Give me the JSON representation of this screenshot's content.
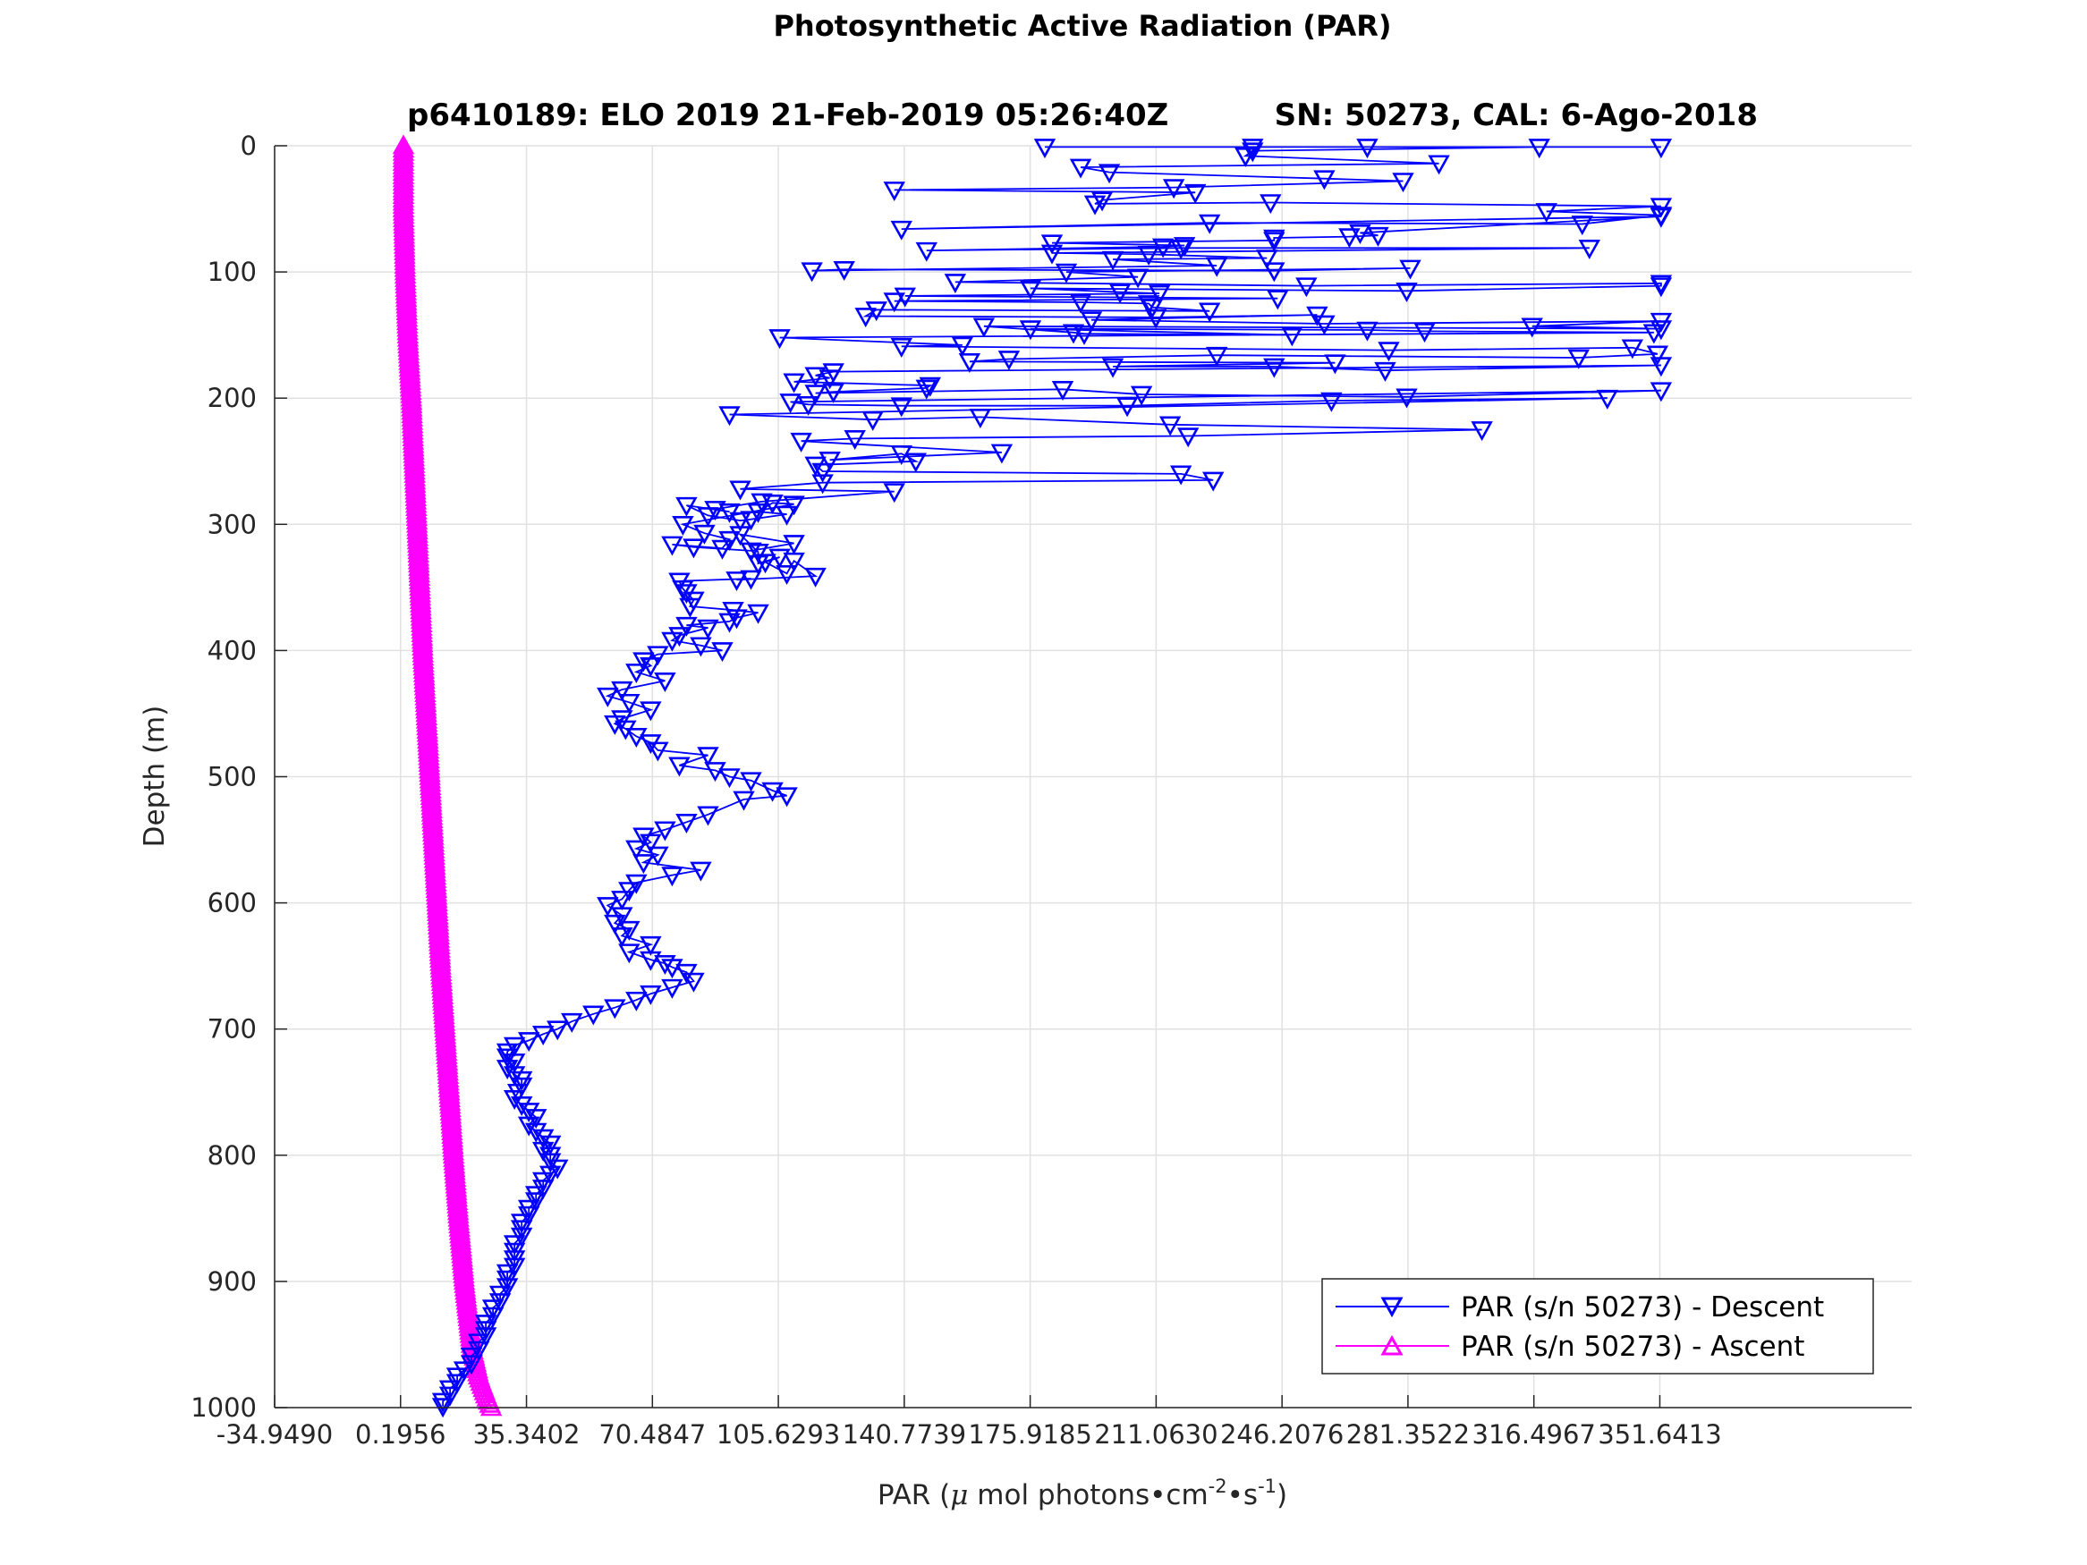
{
  "chart_data": {
    "type": "line",
    "title": "Photosynthetic Active Radiation (PAR)",
    "subtitle": "p6410189: ELO 2019 21-Feb-2019 05:26:40Z          SN: 50273, CAL: 6-Ago-2018",
    "xlabel": {
      "prefix": "PAR (",
      "mu": "μ",
      "mid": " mol photons",
      "bullet1": "•",
      "unit1": "cm",
      "exp1": "-2",
      "bullet2": "•",
      "unit2": "s",
      "exp2": "-1",
      "suffix": ")"
    },
    "ylabel": "Depth (m)",
    "xlim": [
      -34.949,
      421.93
    ],
    "ylim": [
      0,
      1000
    ],
    "y_reversed": true,
    "grid": true,
    "x_ticks": [
      -34.949,
      0.1956,
      35.3402,
      70.4847,
      105.6293,
      140.7739,
      175.9185,
      211.063,
      246.2076,
      281.3522,
      316.4967,
      351.6413
    ],
    "x_tick_labels": [
      "-34.9490",
      "0.1956",
      "35.3402",
      "70.4847",
      "105.6293",
      "140.7739",
      "175.9185",
      "211.0630",
      "246.2076",
      "281.3522",
      "316.4967",
      "351.6413"
    ],
    "y_ticks": [
      0,
      100,
      200,
      300,
      400,
      500,
      600,
      700,
      800,
      900,
      1000
    ],
    "y_tick_labels": [
      "0",
      "100",
      "200",
      "300",
      "400",
      "500",
      "600",
      "700",
      "800",
      "900",
      "1000"
    ],
    "legend": {
      "position": "bottom-right"
    },
    "series": [
      {
        "name": "PAR (s/n 50273) - Descent",
        "color": "#0000ff",
        "marker": "triangle-down",
        "points": [
          [
            180,
            1
          ],
          [
            238,
            1
          ],
          [
            270,
            1
          ],
          [
            352,
            1
          ],
          [
            318,
            1
          ],
          [
            238,
            4
          ],
          [
            236,
            8
          ],
          [
            290,
            14
          ],
          [
            190,
            17
          ],
          [
            198,
            21
          ],
          [
            258,
            26
          ],
          [
            280,
            28
          ],
          [
            216,
            33
          ],
          [
            138,
            35
          ],
          [
            222,
            37
          ],
          [
            196,
            43
          ],
          [
            194,
            46
          ],
          [
            243,
            45
          ],
          [
            352,
            48
          ],
          [
            320,
            52
          ],
          [
            352,
            55
          ],
          [
            330,
            62
          ],
          [
            226,
            61
          ],
          [
            140,
            66
          ],
          [
            352,
            56
          ],
          [
            268,
            69
          ],
          [
            273,
            71
          ],
          [
            265,
            72
          ],
          [
            244,
            73
          ],
          [
            244,
            75
          ],
          [
            182,
            77
          ],
          [
            219,
            79
          ],
          [
            213,
            80
          ],
          [
            147,
            83
          ],
          [
            218,
            81
          ],
          [
            332,
            81
          ],
          [
            182,
            85
          ],
          [
            209,
            86
          ],
          [
            242,
            89
          ],
          [
            199,
            90
          ],
          [
            228,
            95
          ],
          [
            115,
            99
          ],
          [
            124,
            98
          ],
          [
            244,
            99
          ],
          [
            282,
            97
          ],
          [
            186,
            100
          ],
          [
            206,
            104
          ],
          [
            155,
            108
          ],
          [
            253,
            111
          ],
          [
            352,
            109
          ],
          [
            352,
            111
          ],
          [
            281,
            115
          ],
          [
            176,
            113
          ],
          [
            201,
            116
          ],
          [
            212,
            117
          ],
          [
            141,
            119
          ],
          [
            245,
            121
          ],
          [
            138,
            123
          ],
          [
            190,
            124
          ],
          [
            209,
            125
          ],
          [
            210,
            128
          ],
          [
            226,
            131
          ],
          [
            133,
            130
          ],
          [
            130,
            135
          ],
          [
            211,
            136
          ],
          [
            256,
            134
          ],
          [
            193,
            138
          ],
          [
            258,
            141
          ],
          [
            352,
            139
          ],
          [
            316,
            143
          ],
          [
            352,
            145
          ],
          [
            163,
            143
          ],
          [
            188,
            148
          ],
          [
            191,
            149
          ],
          [
            249,
            150
          ],
          [
            176,
            145
          ],
          [
            270,
            146
          ],
          [
            286,
            147
          ],
          [
            350,
            148
          ],
          [
            106,
            152
          ],
          [
            157,
            158
          ],
          [
            140,
            159
          ],
          [
            276,
            162
          ],
          [
            344,
            160
          ],
          [
            351,
            165
          ],
          [
            329,
            168
          ],
          [
            228,
            166
          ],
          [
            170,
            169
          ],
          [
            159,
            171
          ],
          [
            261,
            172
          ],
          [
            199,
            175
          ],
          [
            244,
            175
          ],
          [
            275,
            178
          ],
          [
            352,
            174
          ],
          [
            121,
            179
          ],
          [
            116,
            182
          ],
          [
            120,
            184
          ],
          [
            110,
            187
          ],
          [
            148,
            190
          ],
          [
            147,
            192
          ],
          [
            121,
            195
          ],
          [
            116,
            196
          ],
          [
            185,
            193
          ],
          [
            207,
            197
          ],
          [
            281,
            199
          ],
          [
            352,
            194
          ],
          [
            109,
            203
          ],
          [
            114,
            205
          ],
          [
            140,
            206
          ],
          [
            203,
            206
          ],
          [
            260,
            202
          ],
          [
            337,
            200
          ],
          [
            92,
            213
          ],
          [
            132,
            217
          ],
          [
            162,
            215
          ],
          [
            215,
            221
          ],
          [
            302,
            225
          ],
          [
            220,
            230
          ],
          [
            127,
            232
          ],
          [
            112,
            234
          ],
          [
            168,
            243
          ],
          [
            120,
            249
          ],
          [
            140,
            244
          ],
          [
            144,
            250
          ],
          [
            116,
            253
          ],
          [
            118,
            258
          ],
          [
            218,
            260
          ],
          [
            227,
            265
          ],
          [
            118,
            267
          ],
          [
            95,
            272
          ],
          [
            138,
            274
          ],
          [
            101,
            282
          ],
          [
            88,
            288
          ],
          [
            92,
            290
          ],
          [
            80,
            285
          ],
          [
            86,
            293
          ],
          [
            95,
            297
          ],
          [
            98,
            296
          ],
          [
            108,
            292
          ],
          [
            100,
            290
          ],
          [
            104,
            283
          ],
          [
            110,
            284
          ],
          [
            79,
            300
          ],
          [
            85,
            307
          ],
          [
            92,
            312
          ],
          [
            90,
            319
          ],
          [
            76,
            316
          ],
          [
            82,
            318
          ],
          [
            98,
            321
          ],
          [
            110,
            315
          ],
          [
            95,
            308
          ],
          [
            100,
            322
          ],
          [
            100,
            331
          ],
          [
            106,
            326
          ],
          [
            102,
            330
          ],
          [
            108,
            339
          ],
          [
            110,
            329
          ],
          [
            116,
            341
          ],
          [
            94,
            344
          ],
          [
            98,
            343
          ],
          [
            78,
            345
          ],
          [
            79,
            351
          ],
          [
            80,
            354
          ],
          [
            82,
            360
          ],
          [
            81,
            365
          ],
          [
            93,
            368
          ],
          [
            100,
            370
          ],
          [
            94,
            374
          ],
          [
            92,
            377
          ],
          [
            80,
            380
          ],
          [
            86,
            382
          ],
          [
            78,
            388
          ],
          [
            76,
            392
          ],
          [
            84,
            396
          ],
          [
            90,
            400
          ],
          [
            72,
            403
          ],
          [
            68,
            408
          ],
          [
            70,
            412
          ],
          [
            66,
            417
          ],
          [
            74,
            424
          ],
          [
            62,
            431
          ],
          [
            58,
            436
          ],
          [
            64,
            441
          ],
          [
            70,
            447
          ],
          [
            62,
            454
          ],
          [
            60,
            458
          ],
          [
            63,
            462
          ],
          [
            66,
            468
          ],
          [
            70,
            473
          ],
          [
            72,
            479
          ],
          [
            86,
            483
          ],
          [
            78,
            491
          ],
          [
            88,
            495
          ],
          [
            92,
            500
          ],
          [
            98,
            503
          ],
          [
            104,
            511
          ],
          [
            108,
            515
          ],
          [
            96,
            518
          ],
          [
            86,
            530
          ],
          [
            80,
            536
          ],
          [
            74,
            542
          ],
          [
            68,
            547
          ],
          [
            70,
            552
          ],
          [
            66,
            557
          ],
          [
            72,
            562
          ],
          [
            68,
            568
          ],
          [
            84,
            574
          ],
          [
            76,
            578
          ],
          [
            66,
            584
          ],
          [
            64,
            590
          ],
          [
            62,
            597
          ],
          [
            58,
            602
          ],
          [
            62,
            610
          ],
          [
            60,
            616
          ],
          [
            64,
            621
          ],
          [
            62,
            626
          ],
          [
            70,
            633
          ],
          [
            64,
            639
          ],
          [
            70,
            645
          ],
          [
            74,
            648
          ],
          [
            76,
            651
          ],
          [
            80,
            655
          ],
          [
            82,
            662
          ],
          [
            76,
            667
          ],
          [
            70,
            672
          ],
          [
            66,
            677
          ],
          [
            60,
            683
          ],
          [
            54,
            688
          ],
          [
            48,
            694
          ],
          [
            44,
            700
          ],
          [
            40,
            704
          ],
          [
            36,
            709
          ],
          [
            32,
            713
          ],
          [
            30,
            718
          ],
          [
            30,
            722
          ],
          [
            32,
            726
          ],
          [
            30,
            731
          ],
          [
            32,
            736
          ],
          [
            34,
            740
          ],
          [
            34,
            745
          ],
          [
            33,
            750
          ],
          [
            32,
            755
          ],
          [
            34,
            760
          ],
          [
            36,
            765
          ],
          [
            38,
            770
          ],
          [
            36,
            776
          ],
          [
            38,
            781
          ],
          [
            40,
            786
          ],
          [
            42,
            791
          ],
          [
            40,
            796
          ],
          [
            42,
            800
          ],
          [
            42,
            805
          ],
          [
            44,
            810
          ],
          [
            42,
            815
          ],
          [
            40,
            820
          ],
          [
            40,
            826
          ],
          [
            38,
            831
          ],
          [
            38,
            836
          ],
          [
            36,
            842
          ],
          [
            36,
            847
          ],
          [
            34,
            853
          ],
          [
            34,
            858
          ],
          [
            34,
            864
          ],
          [
            32,
            870
          ],
          [
            32,
            876
          ],
          [
            32,
            882
          ],
          [
            32,
            888
          ],
          [
            30,
            893
          ],
          [
            30,
            898
          ],
          [
            30,
            904
          ],
          [
            28,
            910
          ],
          [
            28,
            916
          ],
          [
            26,
            921
          ],
          [
            26,
            927
          ],
          [
            24,
            933
          ],
          [
            24,
            938
          ],
          [
            24,
            943
          ],
          [
            22,
            948
          ],
          [
            22,
            954
          ],
          [
            20,
            959
          ],
          [
            20,
            965
          ],
          [
            18,
            970
          ],
          [
            16,
            975
          ],
          [
            16,
            980
          ],
          [
            14,
            985
          ],
          [
            14,
            990
          ],
          [
            12,
            995
          ],
          [
            12,
            999
          ]
        ]
      },
      {
        "name": "PAR (s/n 50273) - Ascent",
        "color": "#ff00ff",
        "marker": "triangle-up",
        "points": [
          [
            1.0,
            0
          ],
          [
            1.0,
            50
          ],
          [
            1.5,
            100
          ],
          [
            2.2,
            150
          ],
          [
            3.2,
            200
          ],
          [
            4.0,
            250
          ],
          [
            4.8,
            300
          ],
          [
            5.6,
            350
          ],
          [
            6.4,
            400
          ],
          [
            7.4,
            450
          ],
          [
            8.4,
            500
          ],
          [
            9.4,
            550
          ],
          [
            10.4,
            600
          ],
          [
            11.4,
            650
          ],
          [
            12.6,
            700
          ],
          [
            13.8,
            750
          ],
          [
            15.0,
            800
          ],
          [
            16.4,
            850
          ],
          [
            18.0,
            900
          ],
          [
            20.0,
            950
          ],
          [
            22.0,
            975
          ],
          [
            24.0,
            990
          ],
          [
            25.5,
            1000
          ]
        ]
      }
    ]
  }
}
